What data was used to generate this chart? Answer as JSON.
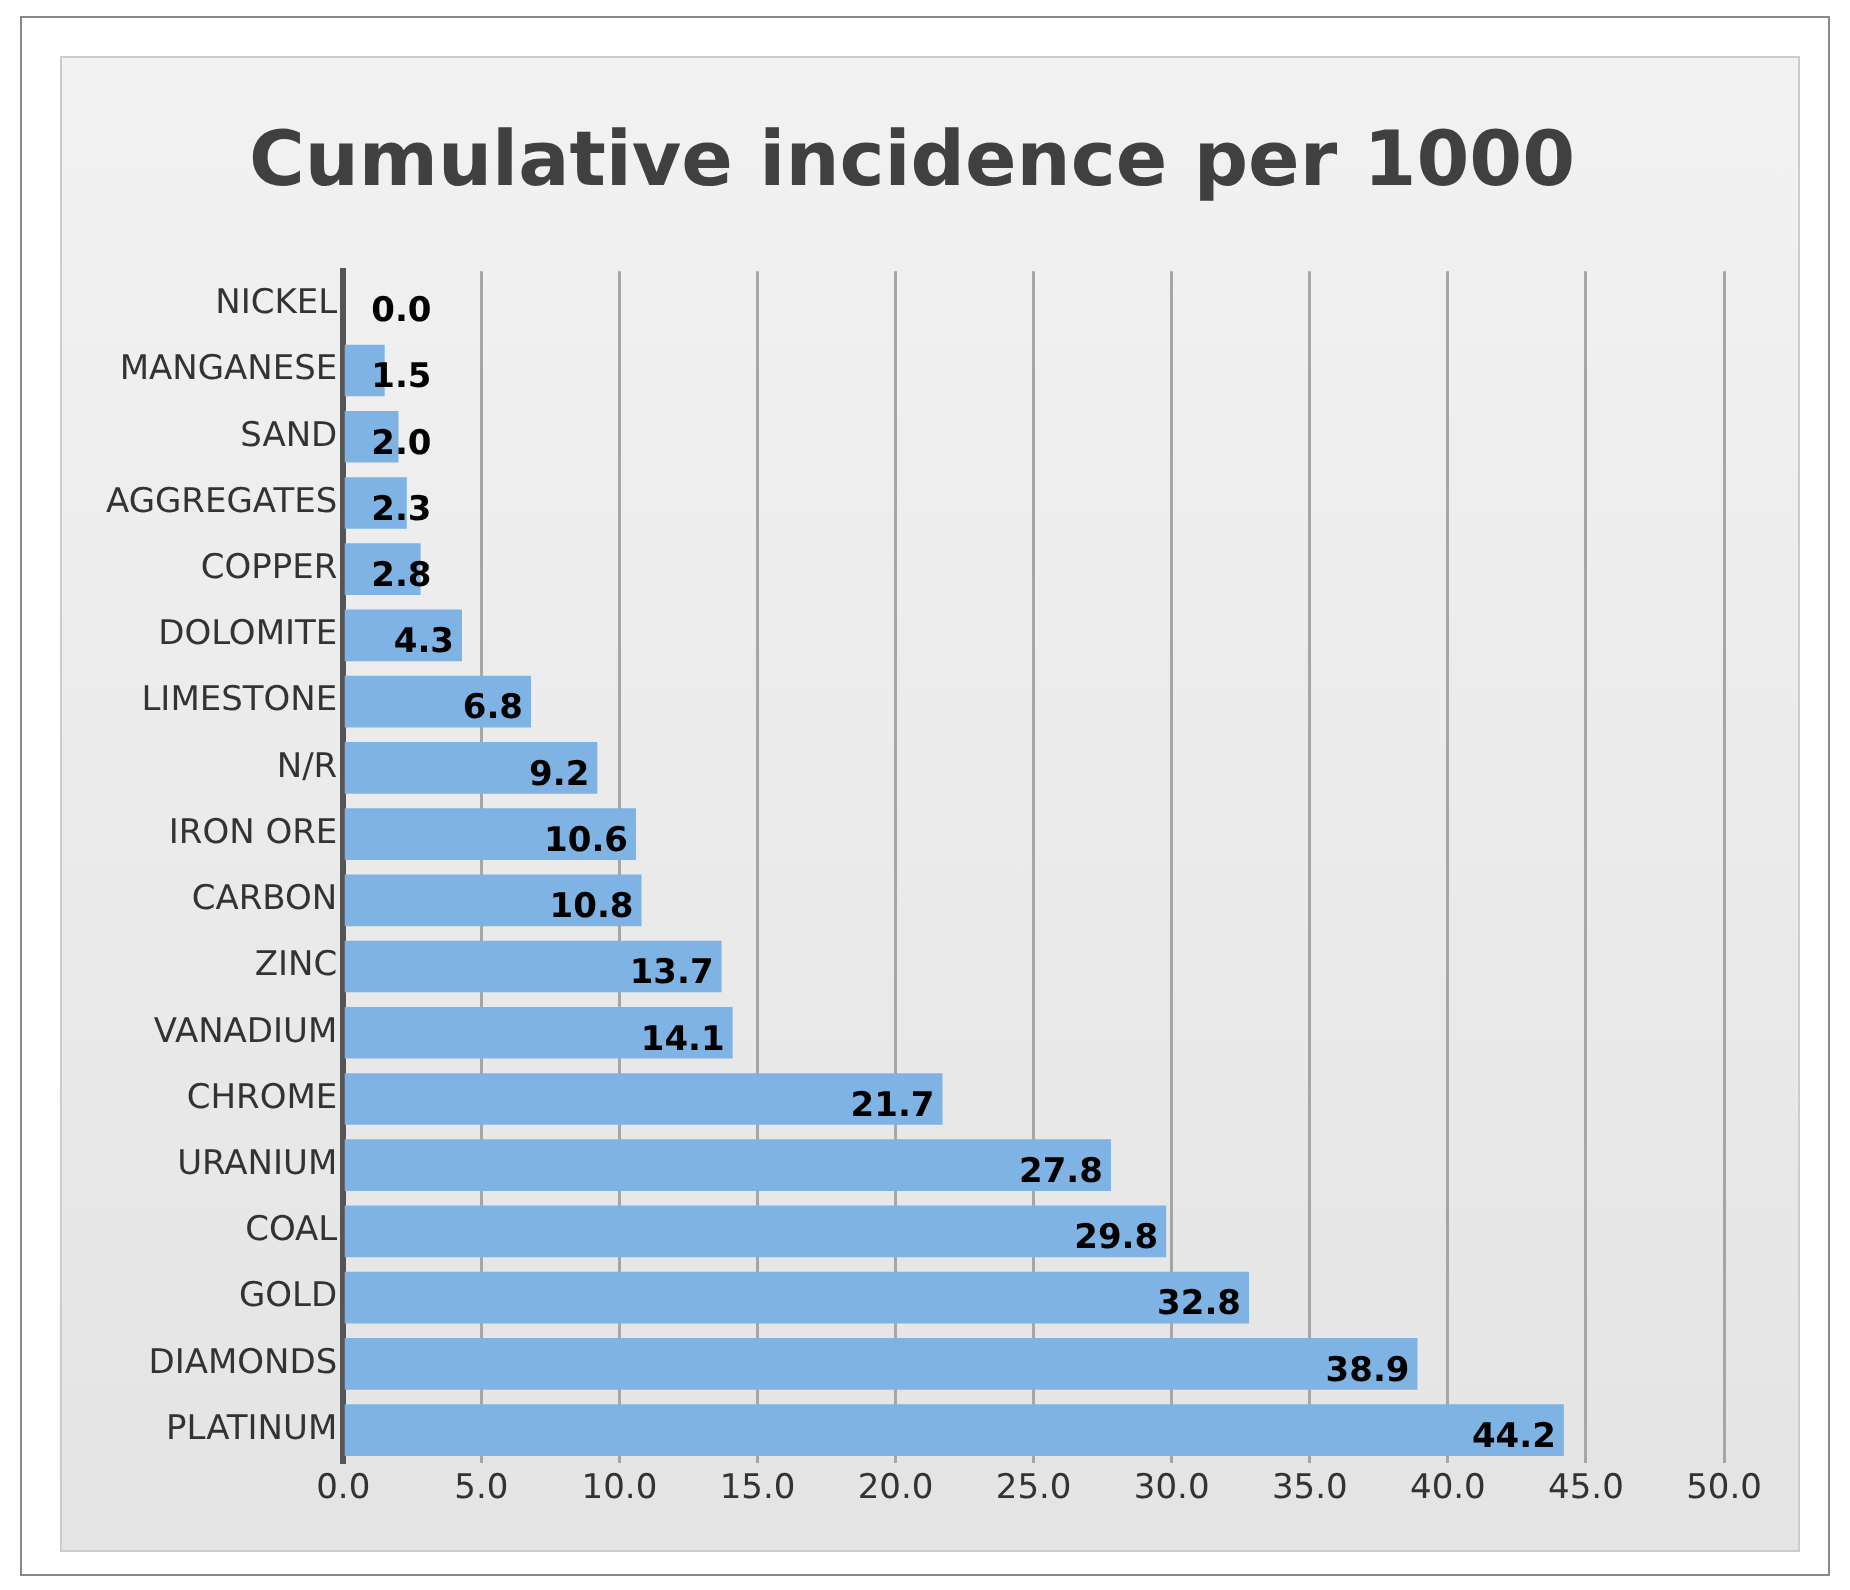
{
  "chart_data": {
    "type": "bar",
    "orientation": "horizontal",
    "title": "Cumulative incidence per 1000",
    "categories": [
      "NICKEL",
      "MANGANESE",
      "SAND",
      "AGGREGATES",
      "COPPER",
      "DOLOMITE",
      "LIMESTONE",
      "N/R",
      "IRON ORE",
      "CARBON",
      "ZINC",
      "VANADIUM",
      "CHROME",
      "URANIUM",
      "COAL",
      "GOLD",
      "DIAMONDS",
      "PLATINUM"
    ],
    "values": [
      0.0,
      1.5,
      2.0,
      2.3,
      2.8,
      4.3,
      6.8,
      9.2,
      10.6,
      10.8,
      13.7,
      14.1,
      21.7,
      27.8,
      29.8,
      32.8,
      38.9,
      44.2
    ],
    "color": "#7eb3e3",
    "xlim": [
      0,
      50
    ],
    "xticks": [
      {
        "value": 0,
        "label": "0.0"
      },
      {
        "value": 5,
        "label": "5.0"
      },
      {
        "value": 10,
        "label": "10.0"
      },
      {
        "value": 15,
        "label": "15.0"
      },
      {
        "value": 20,
        "label": "20.0"
      },
      {
        "value": 25,
        "label": "25.0"
      },
      {
        "value": 30,
        "label": "30.0"
      },
      {
        "value": 35,
        "label": "35.0"
      },
      {
        "value": 40,
        "label": "40.0"
      },
      {
        "value": 45,
        "label": "45.0"
      },
      {
        "value": 50,
        "label": "50.0"
      }
    ],
    "value_labels": [
      "0.0",
      "1.5",
      "2.0",
      "2.3",
      "2.8",
      "4.3",
      "6.8",
      "9.2",
      "10.6",
      "10.8",
      "13.7",
      "14.1",
      "21.7",
      "27.8",
      "29.8",
      "32.8",
      "38.9",
      "44.2"
    ],
    "grid": "x",
    "legend": false
  }
}
